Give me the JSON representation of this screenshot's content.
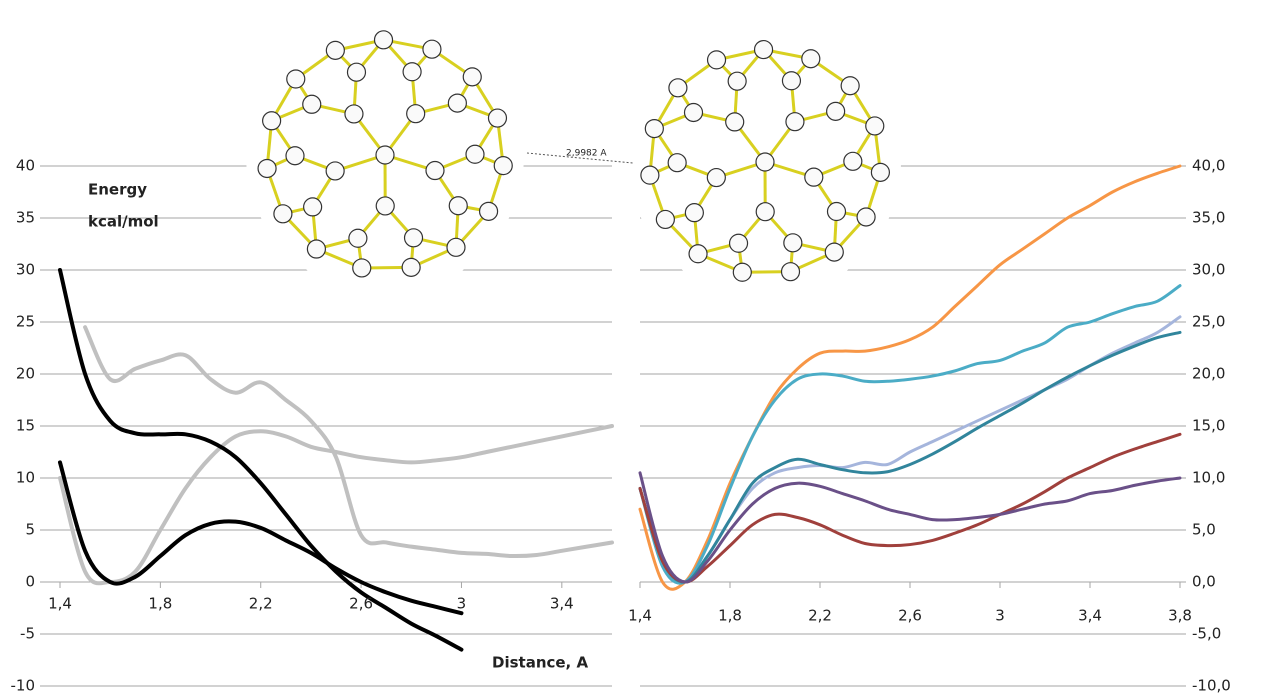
{
  "molecule_label": "2,9982 A",
  "chart_data": [
    {
      "type": "line",
      "y_label_lines": [
        "Energy",
        "kcal/mol"
      ],
      "x_label": "Distance, A",
      "x": [
        1.4,
        1.5,
        1.6,
        1.7,
        1.8,
        1.9,
        2.0,
        2.1,
        2.2,
        2.3,
        2.4,
        2.5,
        2.6,
        2.7,
        2.8,
        2.9,
        3.0,
        3.1,
        3.2,
        3.3,
        3.4,
        3.5,
        3.6
      ],
      "series": [
        {
          "color": "#c0c0c0",
          "values": [
            null,
            24.5,
            19.5,
            20.5,
            21.3,
            21.8,
            19.5,
            18.2,
            19.2,
            17.5,
            15.5,
            12,
            4.5,
            3.8,
            3.4,
            3.1,
            2.8,
            2.7,
            2.5,
            2.6,
            3,
            3.4,
            3.8
          ]
        },
        {
          "color": "#c0c0c0",
          "values": [
            10,
            1,
            0,
            1,
            5,
            9,
            12,
            14,
            14.5,
            14,
            13,
            12.5,
            12,
            11.7,
            11.5,
            11.7,
            12,
            12.5,
            13,
            13.5,
            14,
            14.5,
            15
          ]
        },
        {
          "color": "#000000",
          "values": [
            30,
            20,
            15.5,
            14.3,
            14.2,
            14.2,
            13.5,
            12,
            9.5,
            6.5,
            3.5,
            1,
            -1,
            -2.5,
            -4,
            -5.2,
            -6.5,
            null,
            null,
            null,
            null,
            null,
            null
          ]
        },
        {
          "color": "#000000",
          "values": [
            11.5,
            3,
            0,
            0.5,
            2.5,
            4.5,
            5.6,
            5.8,
            5.2,
            4,
            2.8,
            1.3,
            0,
            -1,
            -1.8,
            -2.4,
            -3,
            null,
            null,
            null,
            null,
            null,
            null
          ]
        }
      ],
      "xlim": [
        1.4,
        3.6
      ],
      "xticks": [
        {
          "value": 1.4,
          "label": "1,4"
        },
        {
          "value": 1.8,
          "label": "1,8"
        },
        {
          "value": 2.2,
          "label": "2,2"
        },
        {
          "value": 2.6,
          "label": "2,6"
        },
        3,
        {
          "value": 3.4,
          "label": "3,4"
        }
      ],
      "ylim": [
        -10,
        40
      ],
      "yticks": [
        -10,
        -5,
        0,
        5,
        10,
        15,
        20,
        25,
        30,
        35,
        40
      ],
      "grid": true
    },
    {
      "type": "line",
      "x": [
        1.4,
        1.5,
        1.6,
        1.7,
        1.8,
        1.9,
        2.0,
        2.1,
        2.2,
        2.3,
        2.4,
        2.5,
        2.6,
        2.7,
        2.8,
        2.9,
        3.0,
        3.1,
        3.2,
        3.3,
        3.4,
        3.5,
        3.6,
        3.7,
        3.8
      ],
      "series": [
        {
          "color": "#f79646",
          "values": [
            7,
            0,
            0,
            4,
            9.5,
            14,
            18,
            20.5,
            22,
            22.2,
            22.2,
            22.6,
            23.3,
            24.5,
            26.5,
            28.5,
            30.5,
            32,
            33.5,
            35,
            36.2,
            37.5,
            38.5,
            39.3,
            40
          ]
        },
        {
          "color": "#4bacc6",
          "values": [
            9,
            1.5,
            0,
            3.5,
            9,
            14,
            17.5,
            19.5,
            20,
            19.8,
            19.3,
            19.3,
            19.5,
            19.8,
            20.3,
            21,
            21.3,
            22.2,
            23,
            24.5,
            25,
            25.8,
            26.5,
            27,
            28.5
          ]
        },
        {
          "color": "#a5b5dc",
          "values": [
            9,
            2,
            0,
            2.5,
            6,
            9,
            10.5,
            11,
            11.2,
            11,
            11.5,
            11.3,
            12.5,
            13.5,
            14.5,
            15.5,
            16.5,
            17.5,
            18.5,
            19.5,
            20.8,
            22,
            23,
            24,
            25.5
          ]
        },
        {
          "color": "#31859c",
          "values": [
            9,
            2,
            0,
            2.5,
            6,
            9.5,
            11,
            11.8,
            11.3,
            10.8,
            10.5,
            10.6,
            11.3,
            12.3,
            13.5,
            14.8,
            16,
            17.2,
            18.5,
            19.7,
            20.8,
            21.8,
            22.7,
            23.5,
            24
          ]
        },
        {
          "color": "#a0403c",
          "values": [
            9,
            2,
            0,
            1.5,
            3.5,
            5.5,
            6.5,
            6.2,
            5.5,
            4.5,
            3.7,
            3.5,
            3.6,
            4,
            4.7,
            5.5,
            6.5,
            7.5,
            8.7,
            10,
            11,
            12,
            12.8,
            13.5,
            14.2
          ]
        },
        {
          "color": "#6a5088",
          "values": [
            10.5,
            2.5,
            0,
            2,
            5,
            7.5,
            9,
            9.5,
            9.2,
            8.5,
            7.8,
            7,
            6.5,
            6,
            6,
            6.2,
            6.5,
            7,
            7.5,
            7.8,
            8.5,
            8.8,
            9.3,
            9.7,
            10
          ]
        }
      ],
      "xlim": [
        1.4,
        3.8
      ],
      "xticks": [
        {
          "value": 1.4,
          "label": "1,4"
        },
        {
          "value": 1.8,
          "label": "1,8"
        },
        {
          "value": 2.2,
          "label": "2,2"
        },
        {
          "value": 2.6,
          "label": "2,6"
        },
        3,
        {
          "value": 3.4,
          "label": "3,4"
        },
        {
          "value": 3.8,
          "label": "3,8"
        }
      ],
      "ylim": [
        -10,
        40
      ],
      "yticks": [
        {
          "value": -10,
          "label": "-10,0"
        },
        {
          "value": -5,
          "label": "-5,0"
        },
        {
          "value": 0,
          "label": "0,0"
        },
        {
          "value": 5,
          "label": "5,0"
        },
        {
          "value": 10,
          "label": "10,0"
        },
        {
          "value": 15,
          "label": "15,0"
        },
        {
          "value": 20,
          "label": "20,0"
        },
        {
          "value": 25,
          "label": "25,0"
        },
        {
          "value": 30,
          "label": "30,0"
        },
        {
          "value": 35,
          "label": "35,0"
        },
        {
          "value": 40,
          "label": "40,0"
        }
      ],
      "grid": true
    }
  ]
}
